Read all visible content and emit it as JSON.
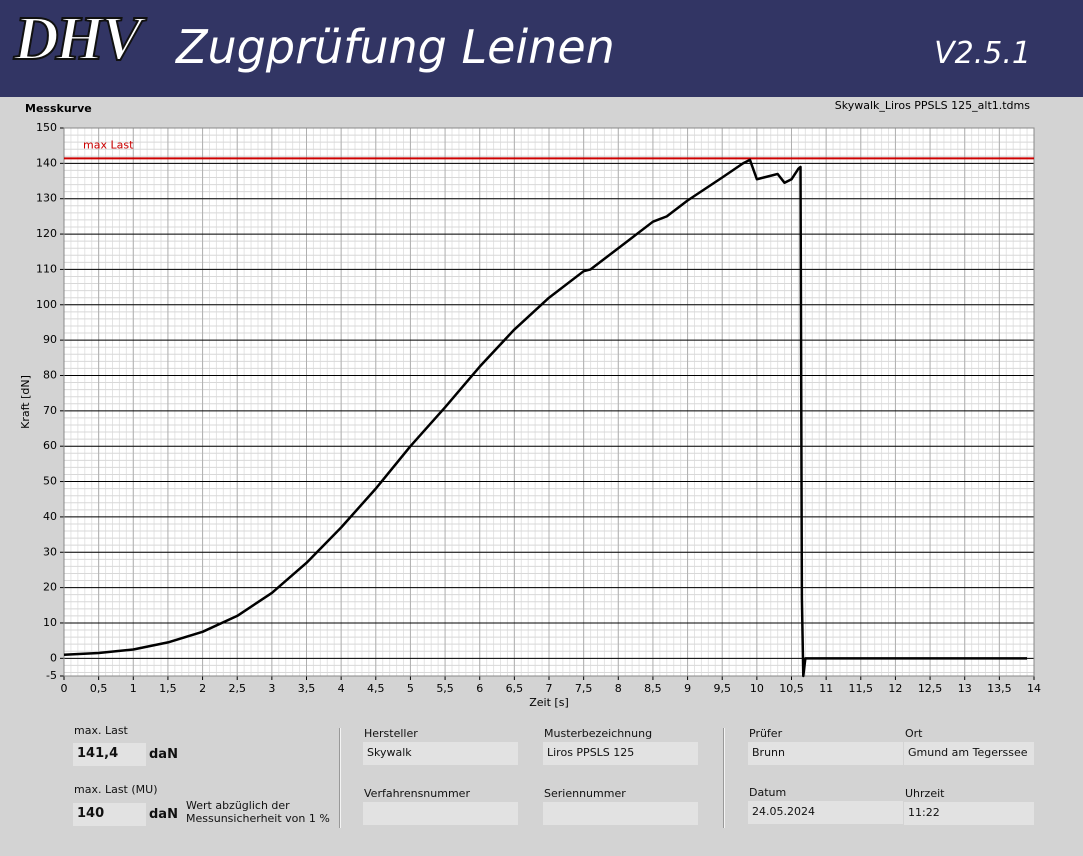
{
  "header": {
    "logo": "DHV",
    "title": "Zugprüfung Leinen",
    "version": "V2.5.1"
  },
  "chart_data": {
    "type": "line",
    "title": "Messkurve",
    "file": "Skywalk_Liros PPSLS 125_alt1.tdms",
    "x_label": "Zeit [s]",
    "y_label": "Kraft [dN]",
    "x": [
      0,
      0.5,
      1,
      1.5,
      2,
      2.5,
      3,
      3.5,
      4,
      4.5,
      5,
      5.5,
      6,
      6.5,
      7,
      7.5,
      7.6,
      8,
      8.5,
      8.7,
      9,
      9.5,
      9.8,
      9.9,
      10,
      10.2,
      10.3,
      10.4,
      10.5,
      10.6,
      10.63,
      10.65,
      10.67,
      10.7,
      11,
      12,
      13,
      13.9
    ],
    "values": [
      1,
      1.5,
      2.5,
      4.5,
      7.5,
      12,
      18.5,
      27,
      37,
      48,
      60,
      71,
      82.5,
      93,
      102,
      109.5,
      110,
      116,
      123.5,
      125,
      129.5,
      136,
      140,
      141,
      135.5,
      136.5,
      137,
      134.5,
      135.5,
      138.5,
      139,
      17,
      -5,
      0,
      0,
      0,
      0,
      0
    ],
    "color": "#000000",
    "xlim": [
      0,
      14
    ],
    "ylim": [
      -5,
      150
    ],
    "xticks": [
      0,
      {
        "value": 0.5,
        "label": "0,5"
      },
      1,
      {
        "value": 1.5,
        "label": "1,5"
      },
      2,
      {
        "value": 2.5,
        "label": "2,5"
      },
      3,
      {
        "value": 3.5,
        "label": "3,5"
      },
      4,
      {
        "value": 4.5,
        "label": "4,5"
      },
      5,
      {
        "value": 5.5,
        "label": "5,5"
      },
      6,
      {
        "value": 6.5,
        "label": "6,5"
      },
      7,
      {
        "value": 7.5,
        "label": "7,5"
      },
      8,
      {
        "value": 8.5,
        "label": "8,5"
      },
      9,
      {
        "value": 9.5,
        "label": "9,5"
      },
      10,
      {
        "value": 10.5,
        "label": "10,5"
      },
      11,
      {
        "value": 11.5,
        "label": "11,5"
      },
      12,
      {
        "value": 12.5,
        "label": "12,5"
      },
      13,
      {
        "value": 13.5,
        "label": "13,5"
      },
      14
    ],
    "yticks": [
      -5,
      0,
      10,
      20,
      30,
      40,
      50,
      60,
      70,
      80,
      90,
      100,
      110,
      120,
      130,
      140,
      150
    ],
    "grid": true,
    "reference_line": {
      "value": 141.4,
      "label": "max Last",
      "color": "#cc0000"
    }
  },
  "results": {
    "max_load": {
      "label": "max. Last",
      "value": "141,4",
      "unit": "daN"
    },
    "max_load_mu": {
      "label": "max. Last (MU)",
      "value": "140",
      "unit": "daN",
      "note": [
        "Wert abzüglich der",
        "Messunsicherheit von 1 %"
      ]
    }
  },
  "fields": [
    {
      "label": "Hersteller",
      "value": "Skywalk"
    },
    {
      "label": "Musterbezeichnung",
      "value": "Liros PPSLS 125"
    },
    {
      "label": "Verfahrensnummer"
    },
    {
      "label": "Seriennummer"
    },
    {
      "label": "Prüfer",
      "value": "Brunn"
    },
    {
      "label": "Ort",
      "value": "Gmund am Tegerssee"
    },
    {
      "label": "Datum",
      "value": "24.05.2024"
    },
    {
      "label": "Uhrzeit",
      "value": "11:22"
    }
  ]
}
